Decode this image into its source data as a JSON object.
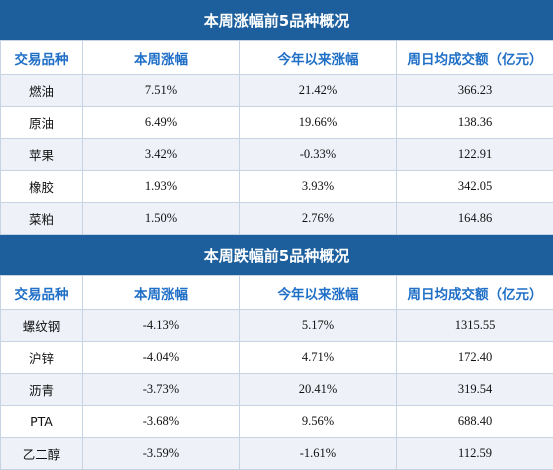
{
  "sections": [
    {
      "title": "本周涨幅前5品种概况",
      "headers": [
        "交易品种",
        "本周涨幅",
        "今年以来涨幅",
        "周日均成交额（亿元）"
      ],
      "rows": [
        [
          "燃油",
          "7.51%",
          "21.42%",
          "366.23"
        ],
        [
          "原油",
          "6.49%",
          "19.66%",
          "138.36"
        ],
        [
          "苹果",
          "3.42%",
          "-0.33%",
          "122.91"
        ],
        [
          "橡胶",
          "1.93%",
          "3.93%",
          "342.05"
        ],
        [
          "菜粕",
          "1.50%",
          "2.76%",
          "164.86"
        ]
      ]
    },
    {
      "title": "本周跌幅前5品种概况",
      "headers": [
        "交易品种",
        "本周涨幅",
        "今年以来涨幅",
        "周日均成交额（亿元）"
      ],
      "rows": [
        [
          "螺纹钢",
          "-4.13%",
          "5.17%",
          "1315.55"
        ],
        [
          "沪锌",
          "-4.04%",
          "4.71%",
          "172.40"
        ],
        [
          "沥青",
          "-3.73%",
          "20.41%",
          "319.54"
        ],
        [
          "PTA",
          "-3.68%",
          "9.56%",
          "688.40"
        ],
        [
          "乙二醇",
          "-3.59%",
          "-1.61%",
          "112.59"
        ]
      ]
    }
  ],
  "colors": {
    "title_bg": "#1d5f9c",
    "header_text": "#1f6fc7",
    "stripe": "#eef2f8",
    "border": "#c5d3e3"
  }
}
